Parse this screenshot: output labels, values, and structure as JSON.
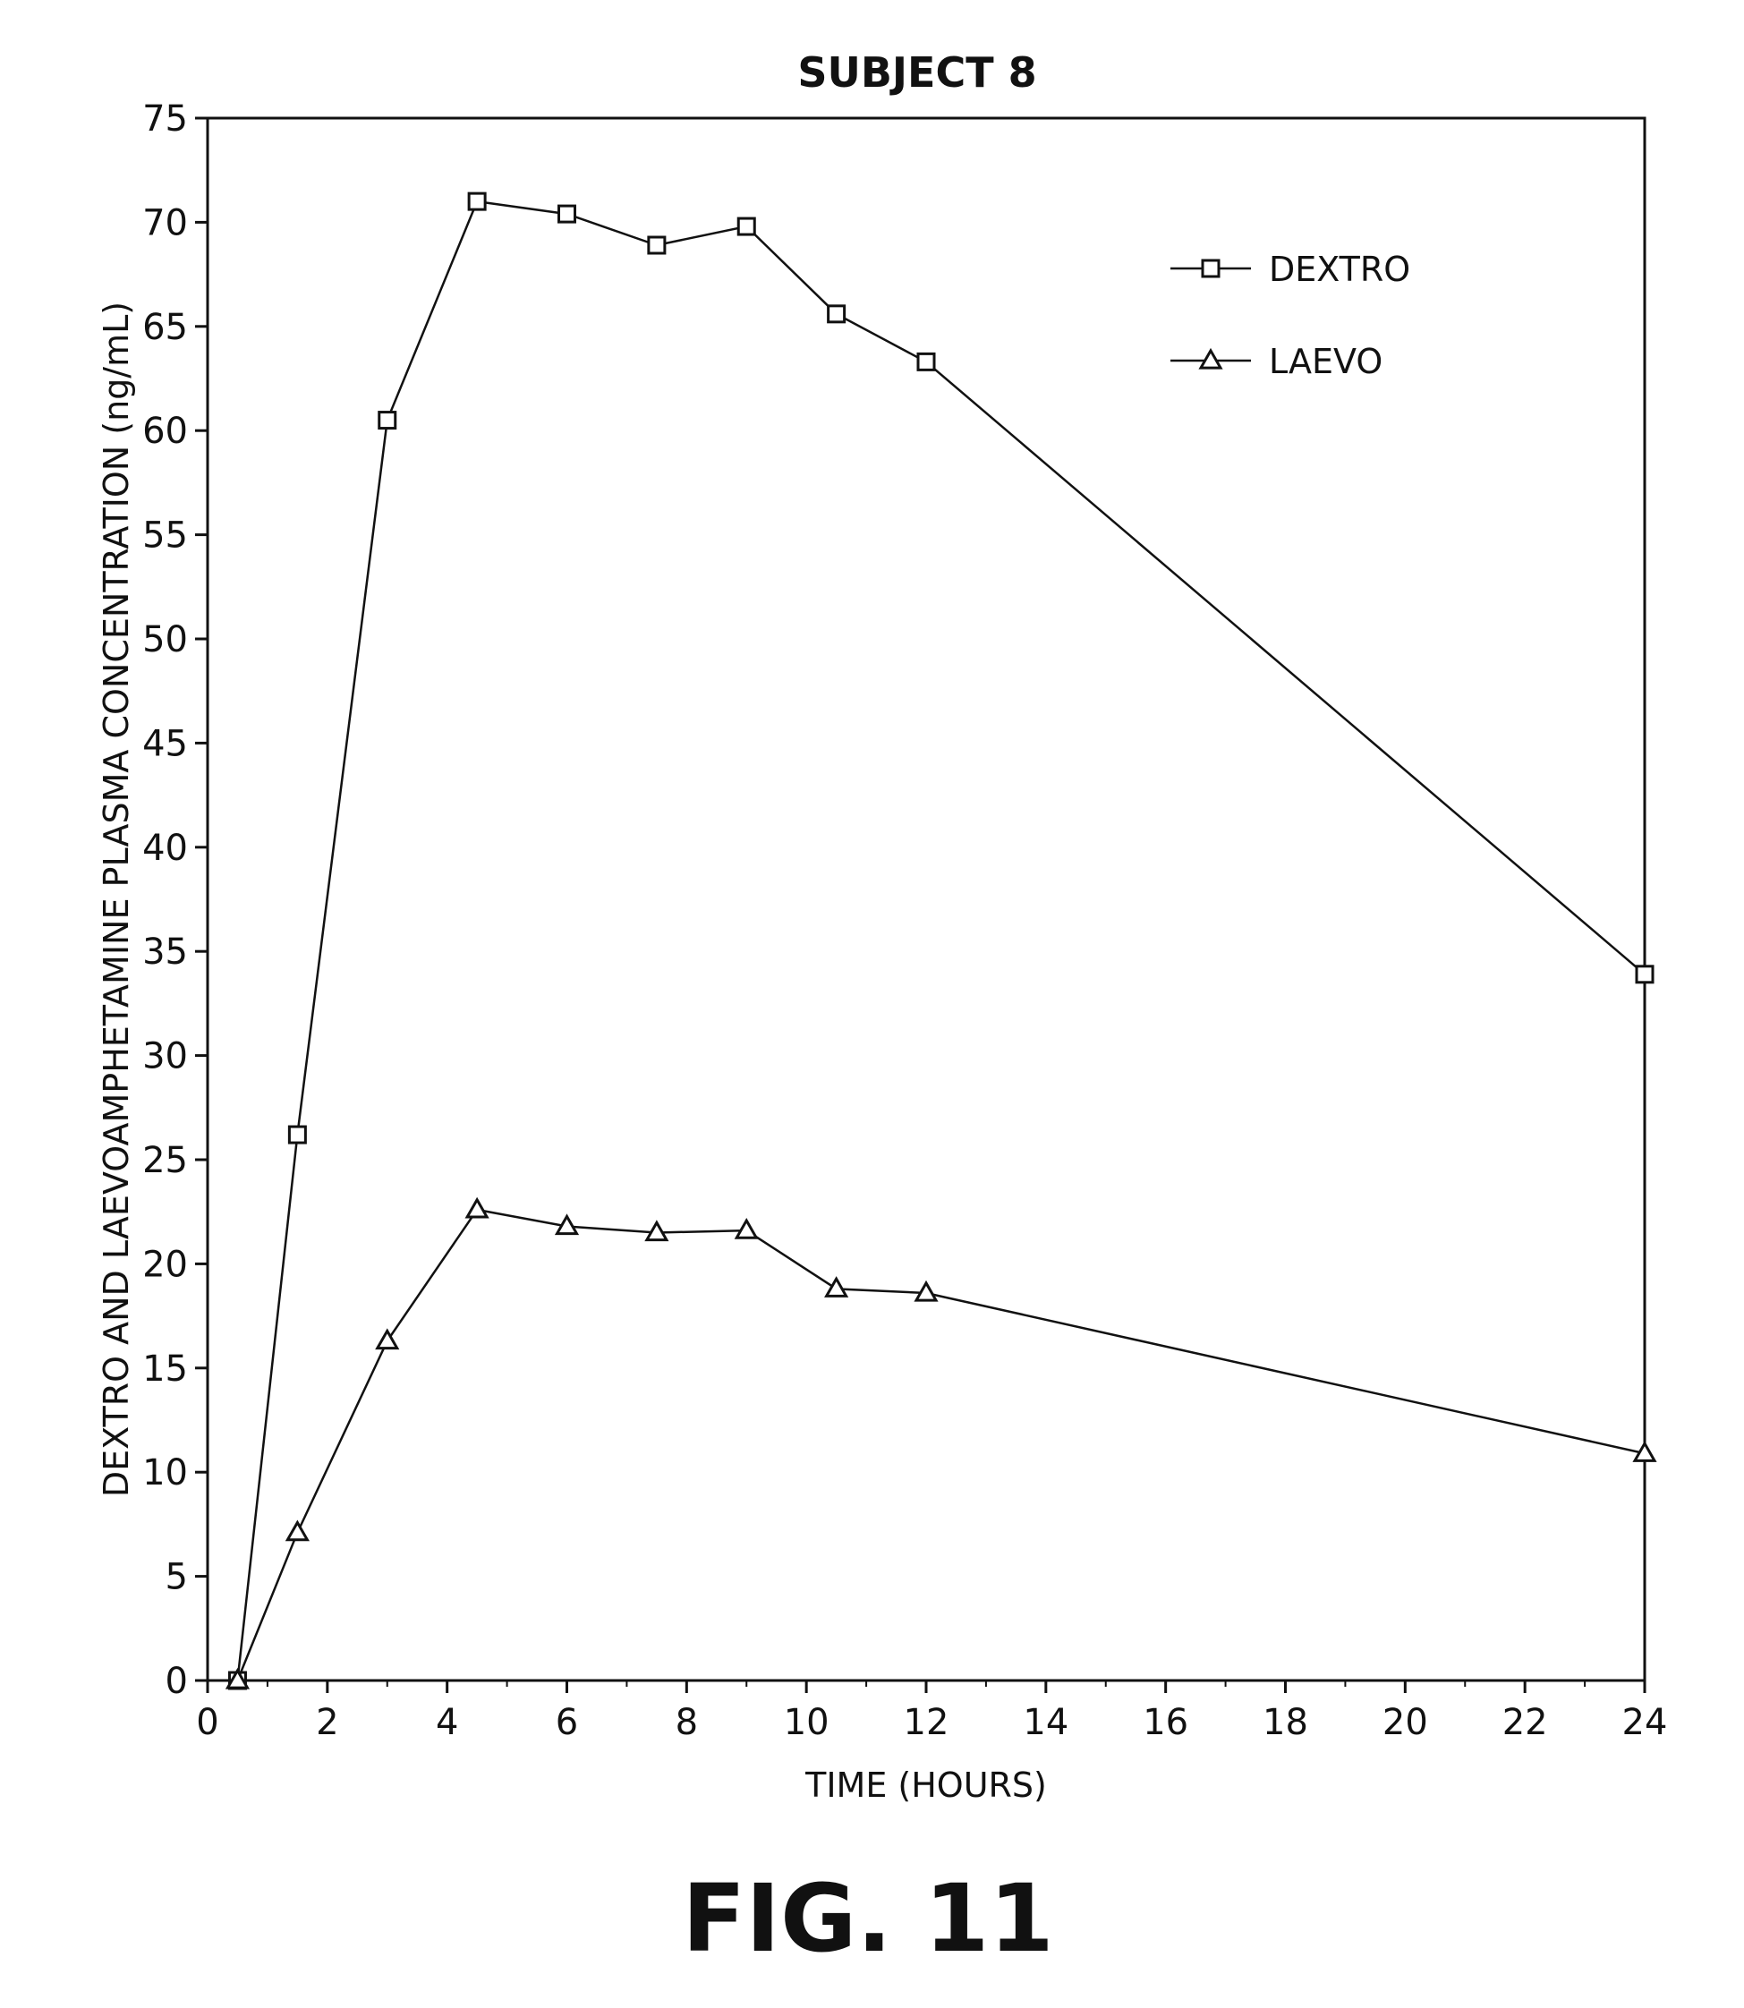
{
  "chart_data": {
    "type": "line",
    "title": "SUBJECT 8",
    "xlabel": "TIME (HOURS)",
    "ylabel": "DEXTRO AND LAEVOAMPHETAMINE PLASMA CONCENTRATION (ng/mL)",
    "xlim": [
      0,
      24
    ],
    "ylim": [
      0,
      75
    ],
    "xticks": [
      0,
      2,
      4,
      6,
      8,
      10,
      12,
      14,
      16,
      18,
      20,
      22,
      24
    ],
    "yticks": [
      0,
      5,
      10,
      15,
      20,
      25,
      30,
      35,
      40,
      45,
      50,
      55,
      60,
      65,
      70,
      75
    ],
    "grid": false,
    "legend_position": "top-right",
    "series": [
      {
        "name": "DEXTRO",
        "marker": "square",
        "x": [
          0.5,
          1.5,
          3,
          4.5,
          6,
          7.5,
          9,
          10.5,
          12,
          24
        ],
        "y": [
          0,
          26.2,
          60.5,
          71,
          70.4,
          68.9,
          69.8,
          65.6,
          63.3,
          33.9
        ]
      },
      {
        "name": "LAEVO",
        "marker": "triangle",
        "x": [
          0.5,
          1.5,
          3,
          4.5,
          6,
          7.5,
          9,
          10.5,
          12,
          24
        ],
        "y": [
          0,
          7.1,
          16.3,
          22.6,
          21.8,
          21.5,
          21.6,
          18.8,
          18.6,
          10.9
        ]
      }
    ]
  },
  "figure_label": "FIG. 11"
}
